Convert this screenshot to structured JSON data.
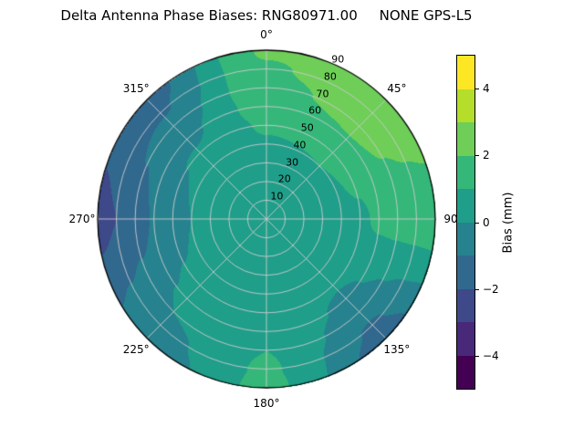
{
  "chart_data": {
    "type": "heatmap",
    "projection": "polar",
    "title": "Delta Antenna Phase Biases: RNG80971.00     NONE GPS-L5",
    "angular_tick_degrees": [
      0,
      45,
      90,
      135,
      180,
      225,
      270,
      315
    ],
    "angular_tick_labels": [
      "0°",
      "45°",
      "90",
      "135°",
      "180°",
      "225°",
      "270°",
      "315°"
    ],
    "radial_tick_values": [
      10,
      20,
      30,
      40,
      50,
      60,
      70,
      80,
      90
    ],
    "radial_tick_labels": [
      "10",
      "20",
      "30",
      "40",
      "50",
      "60",
      "70",
      "80",
      "90"
    ],
    "radial_label_angle_deg": 24,
    "radial_max": 90,
    "grid_on": true,
    "colorbar": {
      "label": "Bias (mm)",
      "min": -5,
      "max": 5,
      "levels": 10,
      "tick_values": [
        4,
        2,
        0,
        -2,
        -4
      ],
      "tick_labels": [
        "4",
        "2",
        "0",
        "−2",
        "−4"
      ],
      "level_colors": [
        "#440154",
        "#482878",
        "#3e4989",
        "#31688e",
        "#26828e",
        "#1f9e89",
        "#35b779",
        "#6ece58",
        "#b5de2b",
        "#fde725"
      ]
    },
    "field": {
      "azimuth_deg": [
        0,
        45,
        90,
        135,
        180,
        225,
        270,
        315
      ],
      "zenith_deg": [
        0,
        10,
        20,
        30,
        40,
        50,
        60,
        70,
        80,
        90
      ],
      "bias_mm": [
        [
          0.6,
          0.6,
          0.6,
          0.6,
          0.6,
          0.6,
          0.6,
          0.6
        ],
        [
          0.6,
          0.6,
          0.6,
          0.5,
          0.6,
          0.5,
          0.5,
          0.6
        ],
        [
          0.7,
          0.7,
          0.6,
          0.5,
          0.6,
          0.5,
          0.4,
          0.5
        ],
        [
          0.8,
          0.8,
          0.7,
          0.4,
          0.6,
          0.4,
          0.2,
          0.4
        ],
        [
          0.9,
          1.0,
          0.8,
          0.3,
          0.7,
          0.3,
          0.0,
          0.3
        ],
        [
          1.1,
          1.4,
          0.9,
          0.1,
          0.8,
          0.2,
          -0.4,
          0.1
        ],
        [
          1.4,
          1.9,
          1.1,
          -0.2,
          0.9,
          0.1,
          -0.9,
          -0.2
        ],
        [
          1.7,
          2.4,
          1.2,
          -0.6,
          1.0,
          0.0,
          -1.5,
          -0.6
        ],
        [
          1.9,
          2.7,
          1.3,
          -1.1,
          1.1,
          -0.3,
          -2.0,
          -1.1
        ],
        [
          2.1,
          2.9,
          1.4,
          -1.4,
          1.2,
          -0.6,
          -2.3,
          -1.4
        ]
      ]
    },
    "grid_color": "#cccccc"
  }
}
